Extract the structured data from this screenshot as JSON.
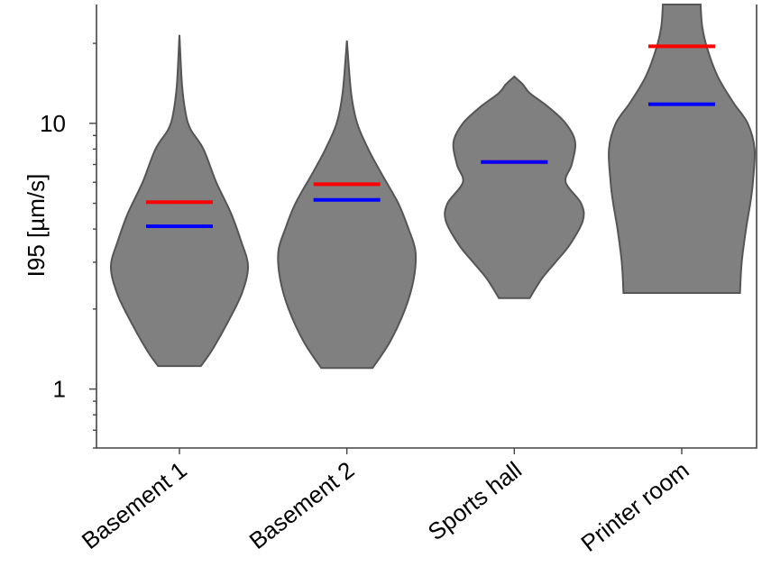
{
  "chart_data": {
    "type": "violin",
    "ylabel": "I95 [µm/s]",
    "yscale": "log",
    "ylim": [
      0.6,
      28
    ],
    "yticks": [
      {
        "value": 1,
        "label": "1"
      },
      {
        "value": 10,
        "label": "10"
      }
    ],
    "grid": false,
    "legend": "none",
    "colors": {
      "violin": "#808080",
      "mean": "#ff0000",
      "median": "#0000ff"
    },
    "categories": [
      {
        "name": "Basement 1",
        "min": 1.22,
        "max": 21.5,
        "mean": 5.05,
        "median": 4.1,
        "profile": [
          [
            1.22,
            0.25
          ],
          [
            1.4,
            0.38
          ],
          [
            1.8,
            0.57
          ],
          [
            2.3,
            0.73
          ],
          [
            2.9,
            0.8
          ],
          [
            3.6,
            0.72
          ],
          [
            4.6,
            0.6
          ],
          [
            6.0,
            0.43
          ],
          [
            8.0,
            0.28
          ],
          [
            9.5,
            0.13
          ],
          [
            11.0,
            0.07
          ],
          [
            14.0,
            0.03
          ],
          [
            21.5,
            0.0
          ]
        ]
      },
      {
        "name": "Basement 2",
        "min": 1.2,
        "max": 20.5,
        "mean": 5.9,
        "median": 5.15,
        "profile": [
          [
            1.2,
            0.3
          ],
          [
            1.5,
            0.5
          ],
          [
            2.0,
            0.68
          ],
          [
            2.6,
            0.78
          ],
          [
            3.3,
            0.8
          ],
          [
            4.0,
            0.72
          ],
          [
            5.0,
            0.6
          ],
          [
            6.5,
            0.4
          ],
          [
            8.0,
            0.25
          ],
          [
            10.0,
            0.12
          ],
          [
            13.0,
            0.05
          ],
          [
            20.5,
            0.0
          ]
        ]
      },
      {
        "name": "Sports hall",
        "min": 2.2,
        "max": 15.0,
        "mean": 7.15,
        "median": 7.15,
        "profile": [
          [
            2.2,
            0.18
          ],
          [
            2.6,
            0.32
          ],
          [
            3.0,
            0.48
          ],
          [
            3.5,
            0.65
          ],
          [
            4.3,
            0.8
          ],
          [
            5.0,
            0.78
          ],
          [
            6.0,
            0.6
          ],
          [
            7.0,
            0.67
          ],
          [
            8.5,
            0.71
          ],
          [
            10.0,
            0.6
          ],
          [
            11.5,
            0.4
          ],
          [
            13.0,
            0.18
          ],
          [
            14.0,
            0.1
          ],
          [
            15.0,
            0.0
          ]
        ]
      },
      {
        "name": "Printer room",
        "min": 2.3,
        "max": 28,
        "mean": 19.5,
        "median": 11.8,
        "profile": [
          [
            2.3,
            0.68
          ],
          [
            3.0,
            0.7
          ],
          [
            4.0,
            0.75
          ],
          [
            5.0,
            0.8
          ],
          [
            6.0,
            0.83
          ],
          [
            8.0,
            0.85
          ],
          [
            10.0,
            0.77
          ],
          [
            12.0,
            0.6
          ],
          [
            15.0,
            0.42
          ],
          [
            19.0,
            0.3
          ],
          [
            23.0,
            0.24
          ],
          [
            28.0,
            0.22
          ]
        ]
      }
    ]
  }
}
